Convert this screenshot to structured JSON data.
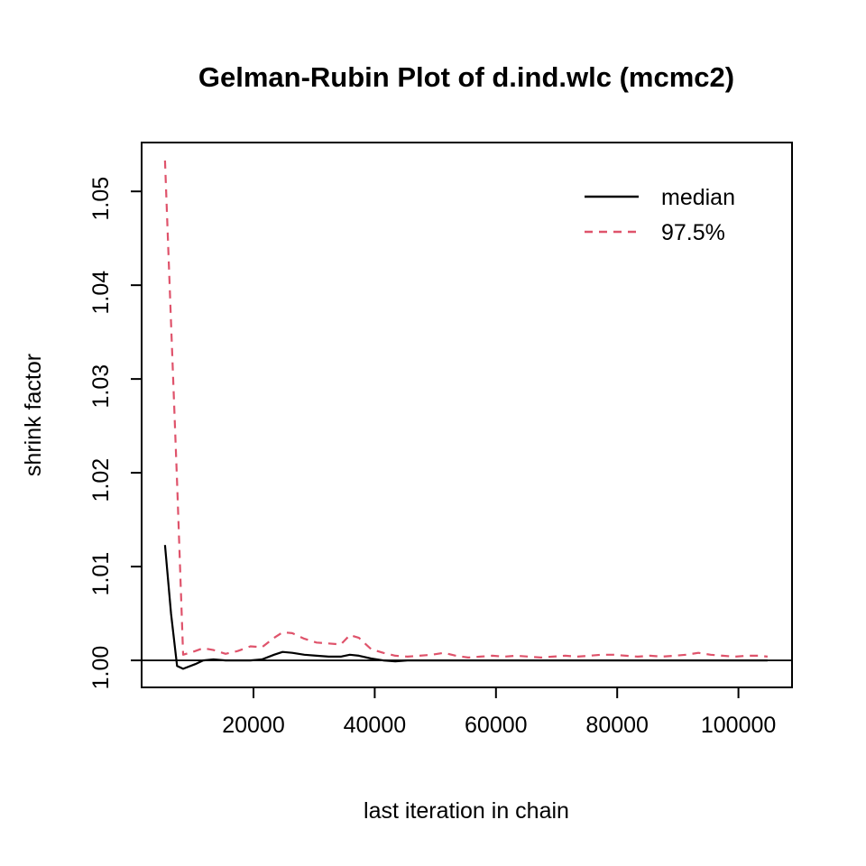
{
  "figure": {
    "background_color": "#ffffff",
    "axis_color": "#000000"
  },
  "chart_data": {
    "type": "line",
    "title": "Gelman-Rubin Plot of d.ind.wlc (mcmc2)",
    "xlabel": "last iteration in chain",
    "ylabel": "shrink factor",
    "xlim": [
      1548,
      108840
    ],
    "ylim": [
      0.99712,
      1.05521
    ],
    "grid": false,
    "reference_line_y": 1.0,
    "xticks": {
      "values": [
        20000,
        40000,
        60000,
        80000,
        100000
      ],
      "labels": [
        "20000",
        "40000",
        "60000",
        "80000",
        "100000"
      ]
    },
    "yticks": {
      "values": [
        1.0,
        1.01,
        1.02,
        1.03,
        1.04,
        1.05
      ],
      "labels": [
        "1.00",
        "1.01",
        "1.02",
        "1.03",
        "1.04",
        "1.05"
      ]
    },
    "legend": {
      "position": "top-right",
      "items": [
        {
          "label": "median",
          "color": "#000000",
          "dash": "solid"
        },
        {
          "label": "97.5%",
          "color": "#DF536B",
          "dash": "dashed"
        }
      ]
    },
    "x": [
      5400,
      6400,
      7400,
      8400,
      10400,
      11700,
      13400,
      15400,
      17400,
      19500,
      21400,
      23400,
      24800,
      26400,
      28400,
      30400,
      32400,
      34400,
      35900,
      37400,
      39400,
      41400,
      43400,
      45400,
      47400,
      49400,
      51400,
      53400,
      55400,
      57400,
      59400,
      61400,
      63400,
      65400,
      67400,
      69400,
      71400,
      73400,
      75400,
      77400,
      79400,
      81400,
      83400,
      85400,
      87400,
      89400,
      91400,
      93400,
      95400,
      97400,
      99400,
      101400,
      103400,
      104800
    ],
    "series": [
      {
        "name": "median",
        "color": "#000000",
        "dash": "solid",
        "values": [
          1.0123,
          1.005,
          0.9994,
          0.9991,
          0.9996,
          1.0,
          1.0001,
          1.0,
          1.0,
          1.0,
          1.0001,
          1.0006,
          1.0009,
          1.0008,
          1.0006,
          1.0005,
          1.0004,
          1.0004,
          1.0006,
          1.0005,
          1.0002,
          1.0,
          0.9999,
          1.0,
          1.0,
          1.0,
          1.0,
          1.0,
          1.0,
          1.0,
          1.0,
          1.0,
          1.0,
          1.0,
          1.0,
          1.0,
          1.0,
          1.0,
          1.0,
          1.0,
          1.0,
          1.0,
          1.0,
          1.0,
          1.0,
          1.0,
          1.0,
          1.0,
          1.0,
          1.0,
          1.0,
          1.0,
          1.0,
          1.0
        ]
      },
      {
        "name": "97.5%",
        "color": "#DF536B",
        "dash": "dashed",
        "values": [
          1.0533,
          1.036,
          1.019,
          1.0006,
          1.001,
          1.0013,
          1.0011,
          1.0007,
          1.001,
          1.0015,
          1.0014,
          1.0024,
          1.003,
          1.0029,
          1.0023,
          1.0019,
          1.0018,
          1.0017,
          1.0027,
          1.0024,
          1.0012,
          1.0008,
          1.0005,
          1.0004,
          1.0005,
          1.0006,
          1.0008,
          1.0005,
          1.0003,
          1.0004,
          1.0005,
          1.0004,
          1.0005,
          1.0004,
          1.0003,
          1.0004,
          1.0005,
          1.0004,
          1.0005,
          1.0006,
          1.0006,
          1.0005,
          1.0004,
          1.0005,
          1.0004,
          1.0005,
          1.0006,
          1.0008,
          1.0006,
          1.0005,
          1.0004,
          1.0005,
          1.0005,
          1.0004
        ]
      }
    ]
  }
}
